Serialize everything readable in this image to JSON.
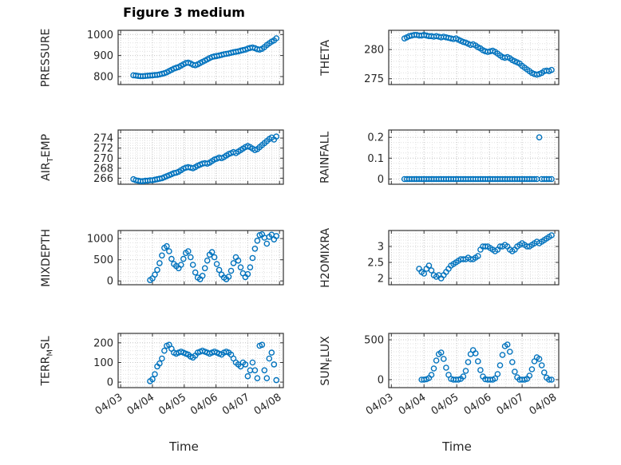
{
  "figure": {
    "title": "Figure 3 medium",
    "xlabel": "Time",
    "marker_color": "#0072BD",
    "axis_color": "#262626",
    "grid_color": "#d8d8d8"
  },
  "x_axis": {
    "xlim": [
      2.92,
      8.12
    ],
    "xticks": [
      3,
      4,
      5,
      6,
      7,
      8
    ],
    "xtick_labels": [
      "04/03",
      "04/04",
      "04/05",
      "04/06",
      "04/07",
      "04/08"
    ],
    "x_minor_step": 0.25
  },
  "x_values": [
    3.4,
    3.475,
    3.55,
    3.625,
    3.7,
    3.775,
    3.85,
    3.925,
    4,
    4.075,
    4.15,
    4.225,
    4.3,
    4.375,
    4.45,
    4.525,
    4.6,
    4.675,
    4.75,
    4.825,
    4.9,
    4.975,
    5.05,
    5.125,
    5.2,
    5.275,
    5.35,
    5.425,
    5.5,
    5.575,
    5.65,
    5.725,
    5.8,
    5.875,
    5.95,
    6.025,
    6.1,
    6.175,
    6.25,
    6.325,
    6.4,
    6.475,
    6.55,
    6.625,
    6.7,
    6.775,
    6.85,
    6.925,
    7,
    7.075,
    7.15,
    7.225,
    7.3,
    7.375,
    7.45,
    7.525,
    7.6,
    7.675,
    7.75,
    7.825,
    7.9
  ],
  "chart_data": [
    {
      "type": "scatter",
      "ylabel_pre": "PRESSURE",
      "ylabel_sub": "",
      "ylabel_post": "",
      "ylim": [
        762,
        1020
      ],
      "yticks": [
        800,
        900,
        1000
      ],
      "y_minor_step": 20,
      "show_x_labels": false,
      "y": [
        806,
        805,
        803,
        802,
        802,
        803,
        804,
        805,
        806,
        807,
        808,
        810,
        813,
        816,
        820,
        826,
        832,
        838,
        842,
        845,
        852,
        858,
        864,
        866,
        862,
        856,
        854,
        858,
        864,
        870,
        876,
        882,
        888,
        893,
        896,
        898,
        900,
        903,
        906,
        908,
        910,
        913,
        916,
        918,
        920,
        923,
        926,
        928,
        933,
        936,
        938,
        935,
        930,
        928,
        932,
        940,
        950,
        958,
        966,
        972,
        982
      ]
    },
    {
      "type": "scatter",
      "ylabel_pre": "THETA",
      "ylabel_sub": "",
      "ylabel_post": "",
      "ylim": [
        274.0,
        283.3
      ],
      "yticks": [
        275,
        280
      ],
      "y_minor_step": 1,
      "show_x_labels": false,
      "y": [
        281.9,
        282.1,
        282.3,
        282.4,
        282.5,
        282.5,
        282.4,
        282.4,
        282.5,
        282.4,
        282.3,
        282.3,
        282.2,
        282.3,
        282.2,
        282.1,
        282.2,
        282.1,
        282.0,
        281.9,
        281.8,
        281.9,
        281.7,
        281.5,
        281.3,
        281.2,
        281.0,
        280.8,
        280.9,
        280.7,
        280.4,
        280.2,
        279.9,
        279.7,
        279.6,
        279.7,
        279.8,
        279.6,
        279.3,
        279.0,
        278.7,
        278.6,
        278.7,
        278.5,
        278.2,
        278.0,
        277.8,
        277.6,
        277.2,
        276.9,
        276.6,
        276.3,
        276.0,
        275.8,
        275.7,
        275.8,
        276.0,
        276.3,
        276.4,
        276.3,
        276.5
      ]
    },
    {
      "type": "scatter",
      "ylabel_pre": "AIR",
      "ylabel_sub": "T",
      "ylabel_post": "EMP",
      "ylim": [
        264.8,
        275.6
      ],
      "yticks": [
        266,
        268,
        270,
        272,
        274
      ],
      "y_minor_step": 0.5,
      "show_x_labels": false,
      "y": [
        265.8,
        265.6,
        265.5,
        265.4,
        265.4,
        265.5,
        265.5,
        265.6,
        265.6,
        265.7,
        265.8,
        265.9,
        266.0,
        266.2,
        266.4,
        266.6,
        266.8,
        267.0,
        267.1,
        267.3,
        267.6,
        267.9,
        268.1,
        268.2,
        268.1,
        268.0,
        268.2,
        268.5,
        268.7,
        268.9,
        269.0,
        268.9,
        269.1,
        269.4,
        269.7,
        269.9,
        270.1,
        270.0,
        270.2,
        270.5,
        270.8,
        271.0,
        271.2,
        271.0,
        271.3,
        271.6,
        271.9,
        272.2,
        272.4,
        272.2,
        271.9,
        271.6,
        271.8,
        272.2,
        272.6,
        273.0,
        273.4,
        273.8,
        274.1,
        273.7,
        274.3
      ]
    },
    {
      "type": "scatter",
      "ylabel_pre": "RAINFALL",
      "ylabel_sub": "",
      "ylabel_post": "",
      "ylim": [
        -0.025,
        0.235
      ],
      "yticks": [
        0,
        0.1,
        0.2
      ],
      "y_minor_step": 0.025,
      "show_x_labels": false,
      "y": [
        0,
        0,
        0,
        0,
        0,
        0,
        0,
        0,
        0,
        0,
        0,
        0,
        0,
        0,
        0,
        0,
        0,
        0,
        0,
        0,
        0,
        0,
        0,
        0,
        0,
        0,
        0,
        0,
        0,
        0,
        0,
        0,
        0,
        0,
        0,
        0,
        0,
        0,
        0,
        0,
        0,
        0,
        0,
        0,
        0,
        0,
        0,
        0,
        0,
        0,
        0,
        0,
        0,
        0,
        0,
        0.2,
        0,
        0,
        0,
        0,
        0
      ]
    },
    {
      "type": "scatter",
      "ylabel_pre": "MIXDEPTH",
      "ylabel_sub": "",
      "ylabel_post": "",
      "ylim": [
        -90,
        1190
      ],
      "yticks": [
        0,
        500,
        1000
      ],
      "y_minor_step": 100,
      "show_x_labels": false,
      "y": [
        null,
        null,
        null,
        null,
        null,
        null,
        null,
        20,
        60,
        150,
        260,
        420,
        600,
        780,
        820,
        700,
        520,
        400,
        350,
        300,
        380,
        520,
        660,
        700,
        560,
        380,
        200,
        80,
        40,
        120,
        300,
        480,
        620,
        680,
        560,
        400,
        260,
        150,
        80,
        40,
        100,
        240,
        420,
        560,
        480,
        320,
        180,
        90,
        160,
        320,
        540,
        760,
        950,
        1080,
        1100,
        1020,
        880,
        1040,
        1090,
        980,
        1060
      ]
    },
    {
      "type": "scatter",
      "ylabel_pre": "H2OMIXRA",
      "ylabel_sub": "",
      "ylabel_post": "",
      "ylim": [
        1.8,
        3.5
      ],
      "yticks": [
        2,
        2.5,
        3
      ],
      "y_minor_step": 0.1,
      "show_x_labels": false,
      "y": [
        null,
        null,
        null,
        null,
        null,
        null,
        2.3,
        2.2,
        2.15,
        2.3,
        2.4,
        2.25,
        2.1,
        2.05,
        2.1,
        2.0,
        2.1,
        2.2,
        2.3,
        2.4,
        2.45,
        2.5,
        2.55,
        2.6,
        2.6,
        2.6,
        2.65,
        2.6,
        2.6,
        2.65,
        2.7,
        2.9,
        3.0,
        3.0,
        3.0,
        2.95,
        2.9,
        2.85,
        2.9,
        3.0,
        3.0,
        3.05,
        3.0,
        2.9,
        2.85,
        2.9,
        3.0,
        3.05,
        3.1,
        3.05,
        3.0,
        3.0,
        3.05,
        3.1,
        3.15,
        3.1,
        3.15,
        3.2,
        3.25,
        3.3,
        3.35
      ]
    },
    {
      "type": "scatter",
      "ylabel_pre": "TERR",
      "ylabel_sub": "M",
      "ylabel_post": "SL",
      "ylim": [
        -28,
        248
      ],
      "yticks": [
        0,
        100,
        200
      ],
      "y_minor_step": 20,
      "show_x_labels": true,
      "y": [
        null,
        null,
        null,
        null,
        null,
        null,
        null,
        5,
        15,
        40,
        80,
        95,
        120,
        160,
        185,
        190,
        170,
        150,
        145,
        150,
        155,
        150,
        145,
        140,
        130,
        125,
        135,
        150,
        155,
        160,
        155,
        150,
        145,
        150,
        155,
        150,
        145,
        140,
        150,
        155,
        150,
        140,
        120,
        100,
        90,
        80,
        100,
        90,
        30,
        60,
        100,
        60,
        20,
        185,
        190,
        60,
        20,
        120,
        150,
        90,
        10
      ]
    },
    {
      "type": "scatter",
      "ylabel_pre": "SUN",
      "ylabel_sub": "F",
      "ylabel_post": "LUX",
      "ylim": [
        -100,
        580
      ],
      "yticks": [
        0,
        500
      ],
      "y_minor_step": 50,
      "show_x_labels": true,
      "y": [
        null,
        null,
        null,
        null,
        null,
        null,
        null,
        0,
        0,
        5,
        20,
        60,
        140,
        240,
        320,
        340,
        260,
        150,
        60,
        10,
        0,
        0,
        0,
        10,
        40,
        110,
        220,
        320,
        370,
        330,
        230,
        120,
        40,
        5,
        0,
        0,
        0,
        15,
        70,
        180,
        310,
        420,
        440,
        350,
        220,
        100,
        30,
        0,
        0,
        0,
        10,
        50,
        130,
        230,
        280,
        260,
        180,
        90,
        25,
        0,
        0
      ]
    }
  ]
}
